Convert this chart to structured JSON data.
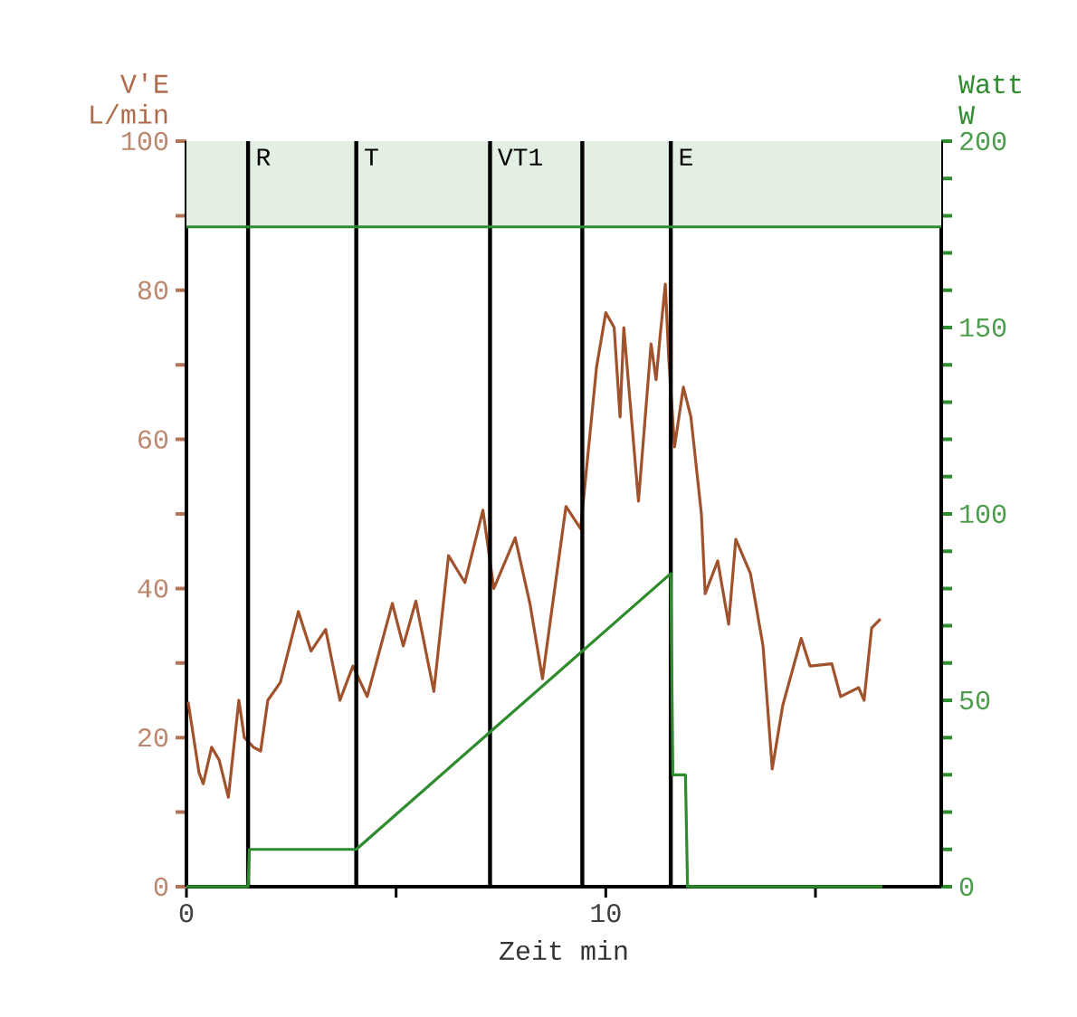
{
  "chart_data": {
    "type": "line",
    "xlabel": "Zeit  min",
    "ylabel": "V'E L/min",
    "y2label": "Watt W",
    "xlim": [
      0,
      18
    ],
    "xticks": [
      0,
      {
        "value": 5,
        "label": null
      },
      10,
      {
        "value": 15,
        "label": null
      }
    ],
    "ylim": [
      0,
      100
    ],
    "yticks": [
      0,
      {
        "value": 10,
        "label": null
      },
      20,
      {
        "value": 30,
        "label": null
      },
      40,
      {
        "value": 50,
        "label": null
      },
      60,
      {
        "value": 70,
        "label": null
      },
      80,
      {
        "value": 90,
        "label": null
      },
      100
    ],
    "y2lim": [
      0,
      200
    ],
    "y2ticks": [
      0,
      {
        "value": 10,
        "label": null
      },
      {
        "value": 20,
        "label": null
      },
      {
        "value": 30,
        "label": null
      },
      {
        "value": 40,
        "label": null
      },
      50,
      {
        "value": 60,
        "label": null
      },
      {
        "value": 70,
        "label": null
      },
      {
        "value": 80,
        "label": null
      },
      {
        "value": 90,
        "label": null
      },
      100,
      {
        "value": 110,
        "label": null
      },
      {
        "value": 120,
        "label": null
      },
      {
        "value": 130,
        "label": null
      },
      {
        "value": 140,
        "label": null
      },
      150,
      {
        "value": 160,
        "label": null
      },
      {
        "value": 170,
        "label": null
      },
      {
        "value": 180,
        "label": null
      },
      {
        "value": 190,
        "label": null
      },
      200
    ],
    "series": [
      {
        "color": "#a0522d",
        "x": [
          0.04,
          0.3,
          0.4,
          0.6,
          0.78,
          1.0,
          1.25,
          1.38,
          1.6,
          1.77,
          1.94,
          2.24,
          2.67,
          2.97,
          3.32,
          3.66,
          3.97,
          4.31,
          4.91,
          5.17,
          5.47,
          5.9,
          6.25,
          6.64,
          7.07,
          7.33,
          7.84,
          8.19,
          8.49,
          9.05,
          9.4,
          9.78,
          10.0,
          10.2,
          10.34,
          10.43,
          10.78,
          11.08,
          11.2,
          11.29,
          11.42,
          11.5,
          11.64,
          11.85,
          12.03,
          12.28,
          12.37,
          12.67,
          12.93,
          13.1,
          13.45,
          13.75,
          13.97,
          14.22,
          14.66,
          14.87,
          15.39,
          15.6,
          16.03,
          16.16,
          16.34,
          16.55
        ],
        "values": [
          24.8,
          15.3,
          13.8,
          18.7,
          17,
          12,
          25,
          20,
          18.7,
          18.2,
          25,
          27.4,
          36.9,
          31.6,
          34.5,
          25,
          29.6,
          25.5,
          38,
          32.3,
          38.3,
          26.2,
          44.4,
          40.8,
          50.5,
          40,
          46.8,
          38,
          27.9,
          51,
          48,
          69.7,
          77,
          75,
          63,
          75,
          51.7,
          72.8,
          68,
          73.5,
          80.8,
          71,
          59,
          67,
          63,
          50,
          39.3,
          43.7,
          35.2,
          46.6,
          42,
          32.3,
          15.8,
          24.3,
          33.3,
          29.6,
          29.9,
          25.5,
          26.7,
          25,
          34.7,
          35.9
        ]
      },
      {
        "color": "#2e8b2e",
        "axis": "y2",
        "x": [
          0,
          1.47,
          1.5,
          4.05,
          11.55,
          11.6,
          11.9,
          11.95,
          16.6
        ],
        "values": [
          0,
          0,
          10,
          10,
          84,
          30,
          30,
          0,
          0
        ]
      }
    ],
    "ref_lines": [
      {
        "axis": "x",
        "value": 1.47,
        "label": "R",
        "color": "#000000"
      },
      {
        "axis": "x",
        "value": 4.05,
        "label": "T",
        "color": "#000000"
      },
      {
        "axis": "x",
        "value": 7.24,
        "label": "VT1",
        "color": "#000000"
      },
      {
        "axis": "x",
        "value": 9.44,
        "color": "#000000"
      },
      {
        "axis": "x",
        "value": 11.55,
        "label": "E",
        "color": "#000000"
      },
      {
        "axis": "y2",
        "value": 177,
        "color": "#2e8b2e"
      }
    ],
    "bands": [
      {
        "axis": "y2",
        "from": 177,
        "to": 200,
        "color": "#e2efe2"
      }
    ]
  }
}
